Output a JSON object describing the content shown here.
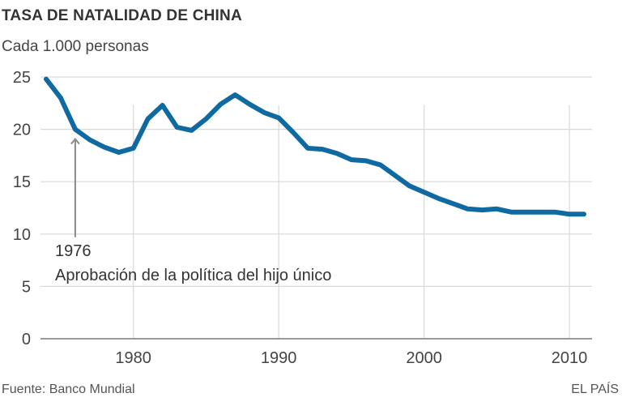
{
  "header": {
    "title": "TASA DE NATALIDAD DE CHINA",
    "subtitle": "Cada 1.000 personas"
  },
  "footer": {
    "source": "Fuente: Banco Mundial",
    "brand": "EL PAÍS"
  },
  "colors": {
    "line": "#0f6aa2",
    "grid": "#d9d9d9",
    "axis": "#9a9a9a",
    "arrow": "#888888"
  },
  "chart_data": {
    "type": "line",
    "title": "TASA DE NATALIDAD DE CHINA",
    "subtitle": "Cada 1.000 personas",
    "xlabel": "",
    "ylabel": "",
    "xlim": [
      1974,
      2011
    ],
    "ylim": [
      0,
      25
    ],
    "grid": true,
    "x_ticks": [
      1980,
      1990,
      2000,
      2010
    ],
    "x_tick_labels": [
      "1980",
      "1990",
      "2000",
      "2010"
    ],
    "y_ticks": [
      0,
      5,
      10,
      15,
      20,
      25
    ],
    "y_tick_labels": [
      "0",
      "5",
      "10",
      "15",
      "20",
      "25"
    ],
    "series": [
      {
        "name": "Tasa de natalidad",
        "x": [
          1974,
          1975,
          1976,
          1977,
          1978,
          1979,
          1980,
          1981,
          1982,
          1983,
          1984,
          1985,
          1986,
          1987,
          1988,
          1989,
          1990,
          1991,
          1992,
          1993,
          1994,
          1995,
          1996,
          1997,
          1998,
          1999,
          2000,
          2001,
          2002,
          2003,
          2004,
          2005,
          2006,
          2007,
          2008,
          2009,
          2010,
          2011
        ],
        "values": [
          24.8,
          23.0,
          20.0,
          19.0,
          18.3,
          17.8,
          18.2,
          21.0,
          22.3,
          20.2,
          19.9,
          21.0,
          22.4,
          23.3,
          22.4,
          21.6,
          21.1,
          19.7,
          18.2,
          18.1,
          17.7,
          17.1,
          17.0,
          16.6,
          15.6,
          14.6,
          14.0,
          13.4,
          12.9,
          12.4,
          12.3,
          12.4,
          12.1,
          12.1,
          12.1,
          12.1,
          11.9,
          11.9
        ]
      }
    ],
    "annotations": [
      {
        "x": 1976,
        "y": 20.0,
        "year_label": "1976",
        "text": "Aprobación de la política del hijo único"
      }
    ]
  }
}
